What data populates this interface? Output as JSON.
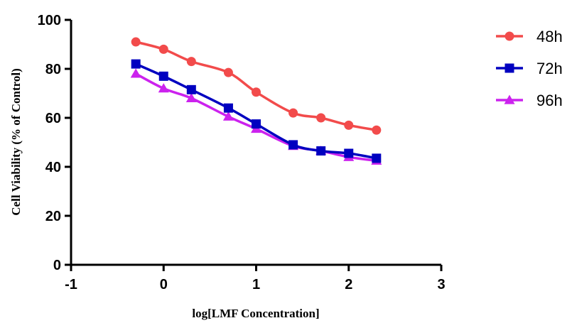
{
  "chart_data": {
    "type": "line",
    "xlabel": "log[LMF Concentration]",
    "ylabel": "Cell Viability (% of Control)",
    "xlim": [
      -1,
      3
    ],
    "ylim": [
      0,
      100
    ],
    "x_ticks": [
      "-1",
      "0",
      "1",
      "2",
      "3"
    ],
    "y_ticks": [
      "0",
      "20",
      "40",
      "60",
      "80",
      "100"
    ],
    "grid": false,
    "legend_position": "top-right",
    "x": [
      -0.3,
      0,
      0.3,
      0.7,
      1,
      1.4,
      1.7,
      2,
      2.3
    ],
    "series": [
      {
        "name": "48h",
        "color": "#f24b4b",
        "marker": "circle",
        "values": [
          91,
          88,
          83,
          78.5,
          70.5,
          62,
          60,
          57,
          55
        ]
      },
      {
        "name": "72h",
        "color": "#0000c0",
        "marker": "square",
        "values": [
          82,
          77,
          71.5,
          64,
          57.5,
          49,
          46.5,
          45.5,
          43.5
        ]
      },
      {
        "name": "96h",
        "color": "#cc22ee",
        "marker": "triangle",
        "values": [
          78,
          72,
          68,
          60.5,
          55.5,
          48.5,
          46.5,
          44,
          42.5
        ]
      }
    ]
  }
}
